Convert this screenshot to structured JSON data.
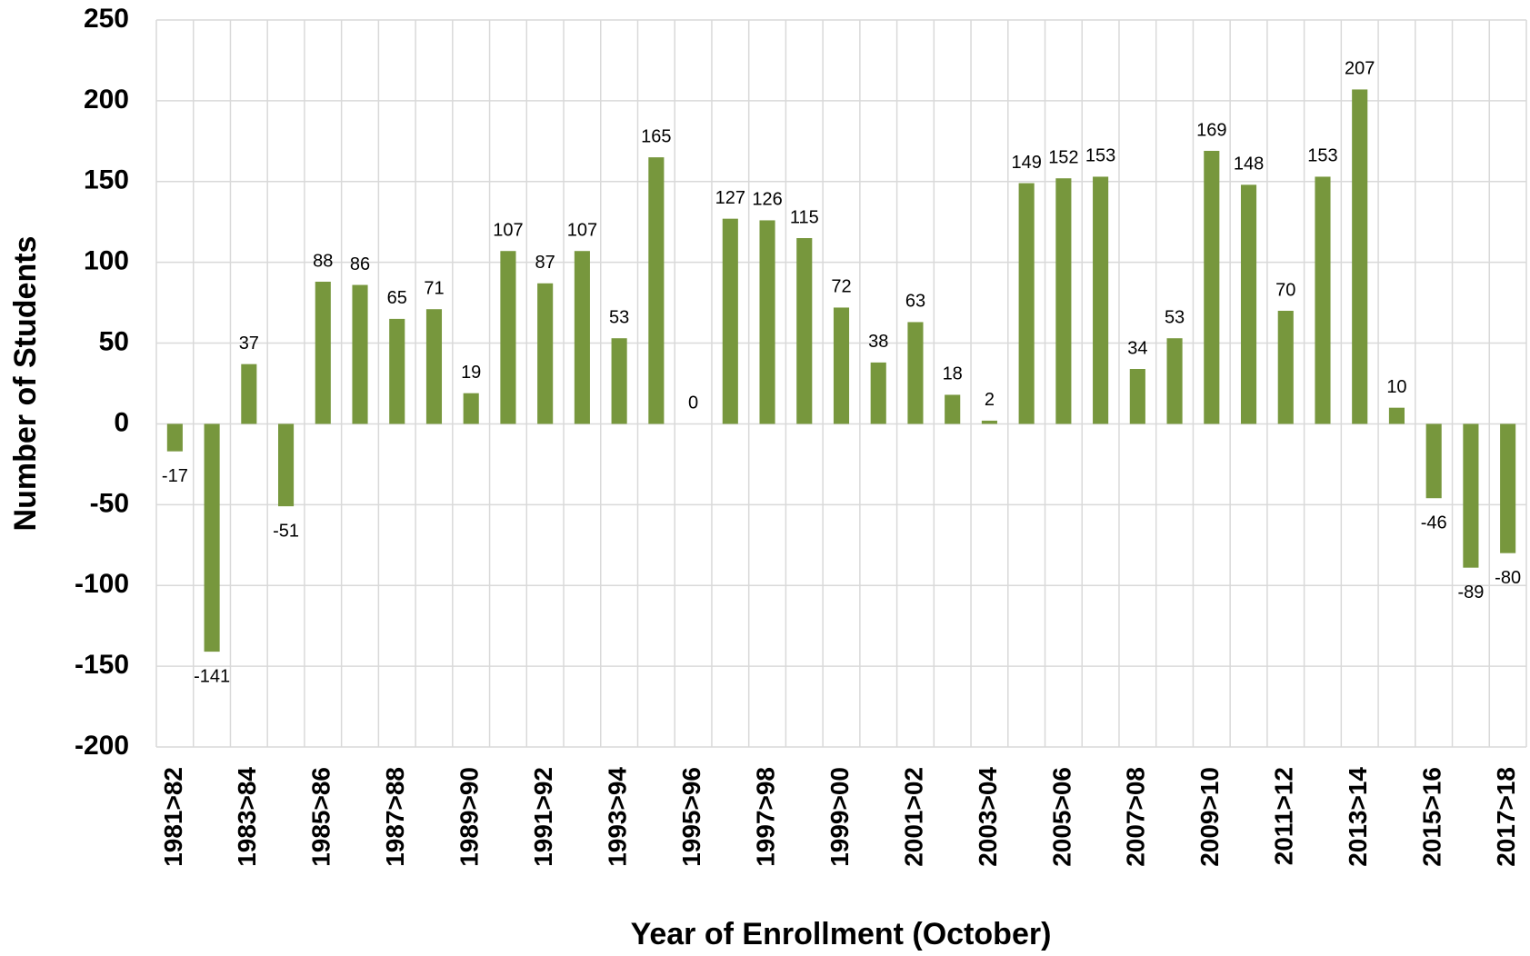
{
  "chart_data": {
    "type": "bar",
    "x_label": "Year of Enrollment (October)",
    "y_label": "Number of Students",
    "categories": [
      "1981>82",
      null,
      "1983>84",
      null,
      "1985>86",
      null,
      "1987>88",
      null,
      "1989>90",
      null,
      "1991>92",
      null,
      "1993>94",
      null,
      "1995>96",
      null,
      "1997>98",
      null,
      "1999>00",
      null,
      "2001>02",
      null,
      "2003>04",
      null,
      "2005>06",
      null,
      "2007>08",
      null,
      "2009>10",
      null,
      "2011>12",
      null,
      "2013>14",
      null,
      "2015>16",
      null,
      "2017>18"
    ],
    "values": [
      -17,
      -141,
      37,
      -51,
      88,
      86,
      65,
      71,
      19,
      107,
      87,
      107,
      53,
      165,
      0,
      127,
      126,
      115,
      72,
      38,
      63,
      18,
      2,
      149,
      152,
      153,
      34,
      53,
      169,
      148,
      70,
      153,
      207,
      10,
      -46,
      -89,
      -80
    ],
    "color": "#77973d",
    "ylim": [
      -200,
      250
    ],
    "yticks": [
      -200,
      -150,
      -100,
      -50,
      0,
      50,
      100,
      150,
      200,
      250
    ],
    "grid": true
  }
}
